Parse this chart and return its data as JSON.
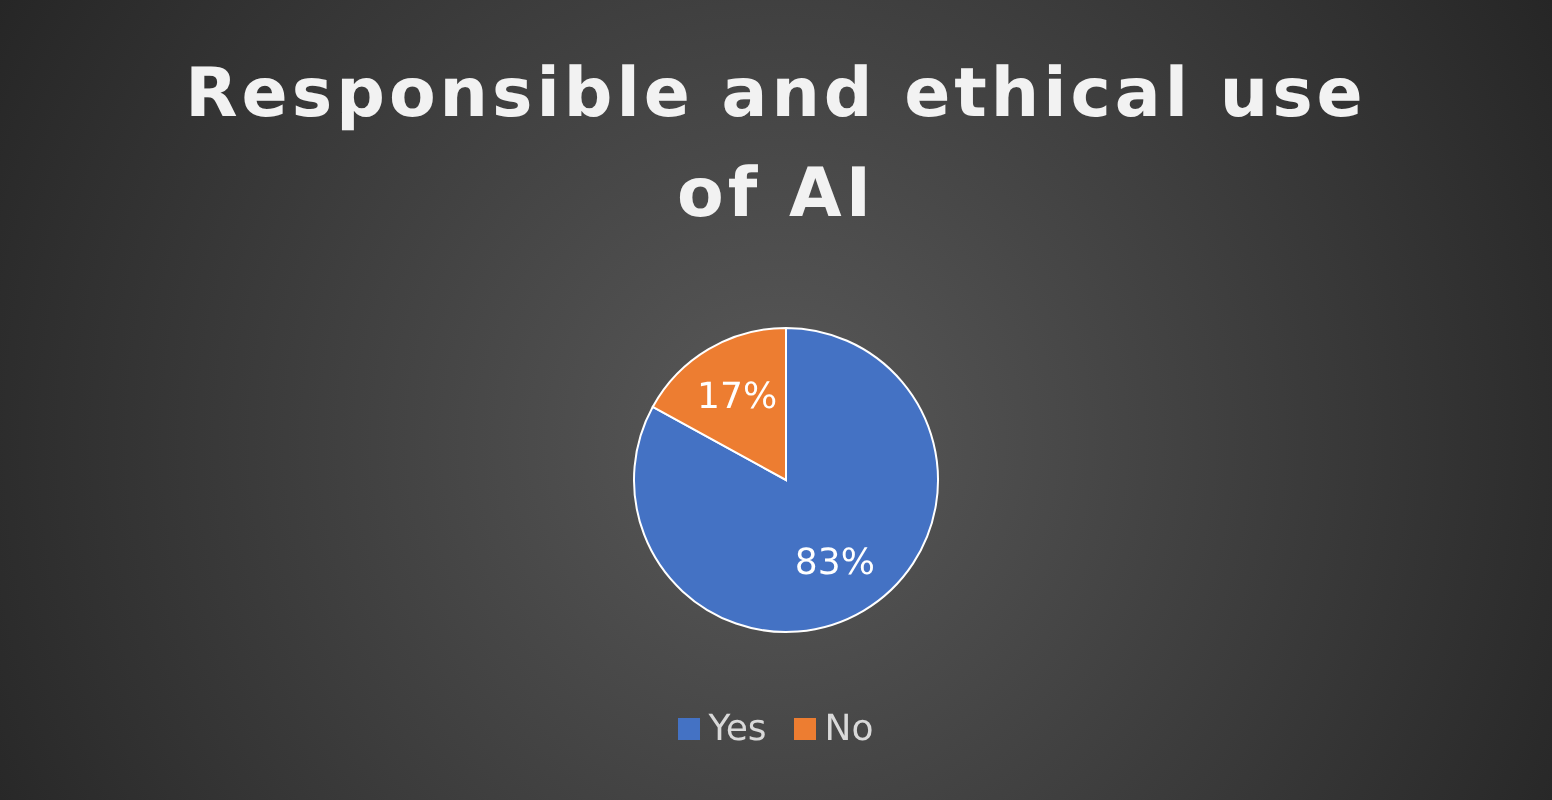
{
  "chart_data": {
    "type": "pie",
    "title": "Responsible and ethical use of AI",
    "categories": [
      "Yes",
      "No"
    ],
    "values": [
      83,
      17
    ],
    "value_labels": [
      "83%",
      "17%"
    ],
    "colors": [
      "#4472c4",
      "#ed7d31"
    ],
    "legend": "bottom"
  }
}
